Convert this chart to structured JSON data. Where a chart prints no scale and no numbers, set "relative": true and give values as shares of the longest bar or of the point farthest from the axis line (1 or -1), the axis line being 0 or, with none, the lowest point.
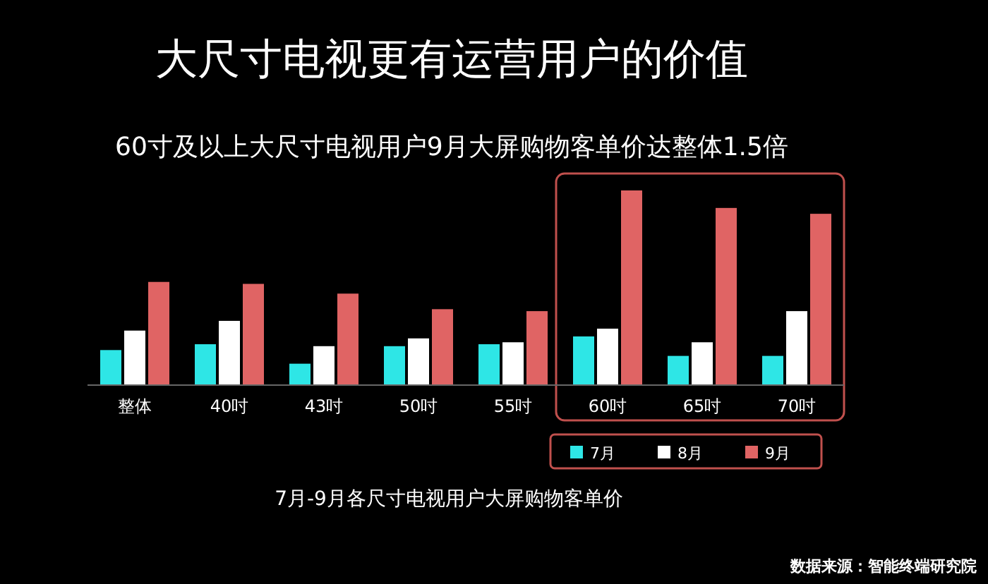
{
  "chart_data": {
    "type": "bar",
    "title": "大尺寸电视更有运营用户的价值",
    "subtitle": "60寸及以上大尺寸电视用户9月大屏购物客单价达整体1.5倍",
    "relative": true,
    "categories": [
      "整体",
      "40吋",
      "43吋",
      "50吋",
      "55吋",
      "60吋",
      "65吋",
      "70吋"
    ],
    "series": [
      {
        "name": "7月",
        "color": "#2ee6e6",
        "values": [
          0.18,
          0.21,
          0.11,
          0.2,
          0.21,
          0.25,
          0.15,
          0.15
        ]
      },
      {
        "name": "8月",
        "color": "#ffffff",
        "values": [
          0.28,
          0.33,
          0.2,
          0.24,
          0.22,
          0.29,
          0.22,
          0.38
        ]
      },
      {
        "name": "9月",
        "color": "#e06464",
        "values": [
          0.53,
          0.52,
          0.47,
          0.39,
          0.38,
          1,
          0.91,
          0.88
        ]
      }
    ],
    "legend": "bottom right",
    "annotations": [
      "7月-9月各尺寸电视用户大屏购物客单价",
      "数据来源：智能终端研究院"
    ]
  }
}
